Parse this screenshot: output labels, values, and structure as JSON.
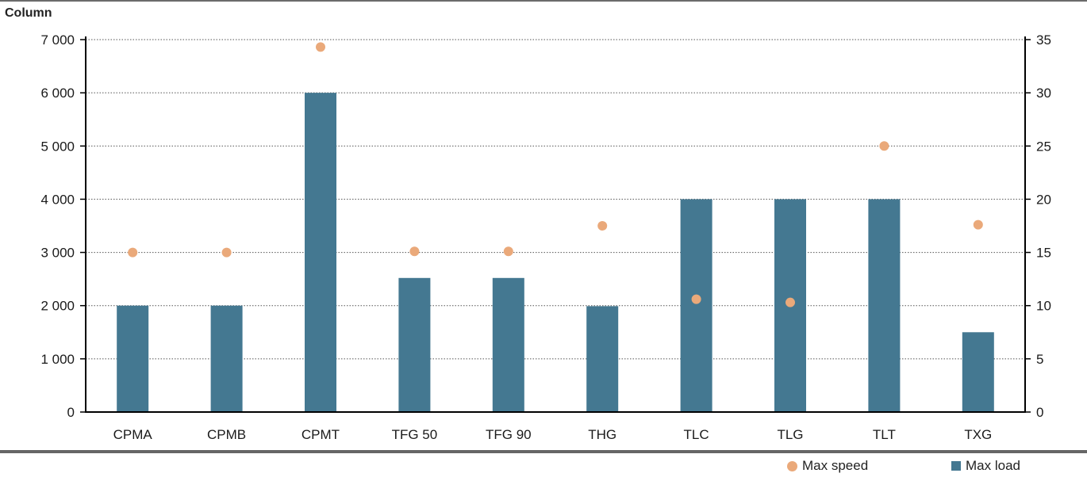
{
  "title": "Column",
  "colors": {
    "bar": "#447891",
    "dot": "#eaa97a",
    "grid": "#555555",
    "axis": "#000000"
  },
  "legend": {
    "speed_label": "Max speed",
    "load_label": "Max load",
    "placement": "bottom-right"
  },
  "chart_data": {
    "type": "bar",
    "categories": [
      "CPMA",
      "CPMB",
      "CPMT",
      "TFG 50",
      "TFG 90",
      "THG",
      "TLC",
      "TLG",
      "TLT",
      "TXG"
    ],
    "series": [
      {
        "name": "Max load",
        "type": "bar",
        "axis": "left",
        "values": [
          2000,
          2000,
          6000,
          2520,
          2520,
          1990,
          4000,
          4000,
          4000,
          1500
        ]
      },
      {
        "name": "Max speed",
        "type": "scatter",
        "axis": "right",
        "values": [
          15,
          15,
          34.3,
          15.1,
          15.1,
          17.5,
          10.6,
          10.3,
          25,
          17.6
        ]
      }
    ],
    "y_left": {
      "range": [
        0,
        7000
      ],
      "ticks": [
        0,
        1000,
        2000,
        3000,
        4000,
        5000,
        6000,
        7000
      ],
      "tick_labels": [
        "0",
        "1 000",
        "2 000",
        "3 000",
        "4 000",
        "5 000",
        "6 000",
        "7 000"
      ]
    },
    "y_right": {
      "range": [
        0,
        35
      ],
      "ticks": [
        0,
        5,
        10,
        15,
        20,
        25,
        30,
        35
      ],
      "tick_labels": [
        "0",
        "5",
        "10",
        "15",
        "20",
        "25",
        "30",
        "35"
      ]
    },
    "grid": true
  }
}
